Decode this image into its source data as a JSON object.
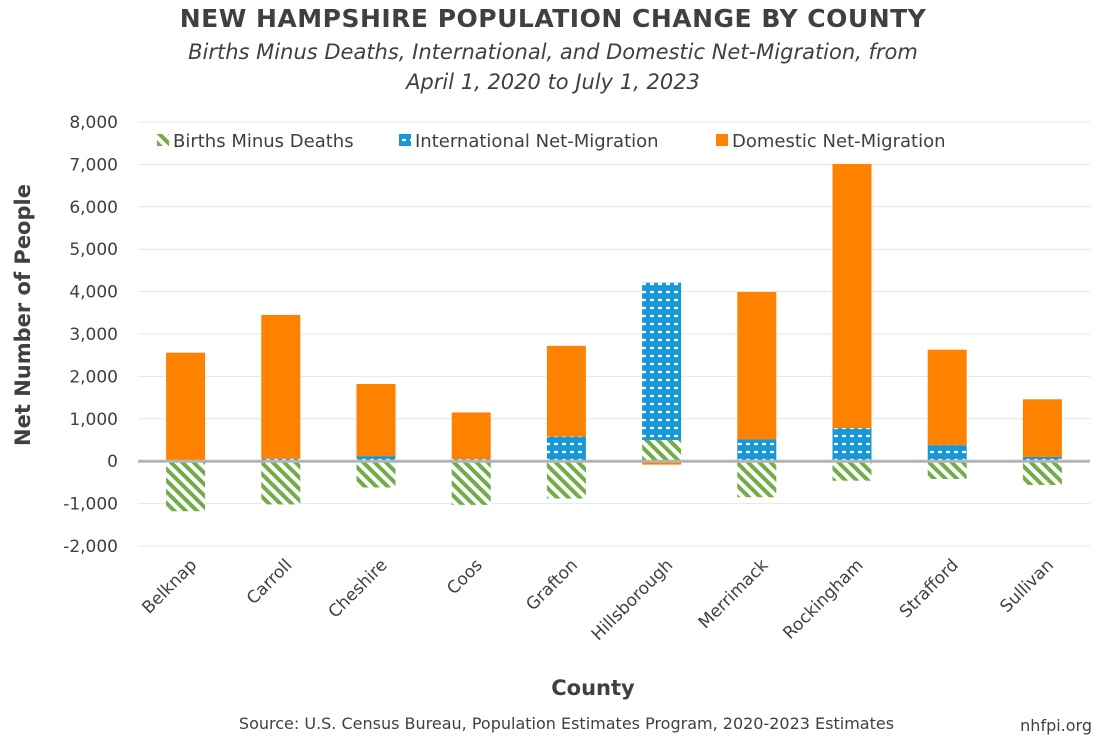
{
  "colors": {
    "births": "#70ad47",
    "international": "#1597d8",
    "domestic": "#fe8100",
    "zero_line": "#b4b4b4",
    "grid": "#e4e4e4",
    "text": "#404040"
  },
  "header": {
    "title": "NEW HAMPSHIRE POPULATION CHANGE BY COUNTY",
    "subtitle_line1": "Births Minus Deaths, International, and Domestic Net-Migration, from",
    "subtitle_line2": "April 1, 2020 to July 1, 2023"
  },
  "footer": {
    "source": "Source: U.S. Census Bureau, Population Estimates Program, 2020-2023 Estimates",
    "brand": "nhfpi.org"
  },
  "chart_data": {
    "type": "bar",
    "stacked": true,
    "categories": [
      "Belknap",
      "Carroll",
      "Cheshire",
      "Coos",
      "Grafton",
      "Hillsborough",
      "Merrimack",
      "Rockingham",
      "Strafford",
      "Sullivan"
    ],
    "series": [
      {
        "name": "Births Minus Deaths",
        "key": "births",
        "pattern": "diagonal-stripes",
        "values": [
          -1180,
          -1020,
          -620,
          -1030,
          -880,
          500,
          -850,
          -460,
          -420,
          -560
        ]
      },
      {
        "name": "International Net-Migration",
        "key": "international",
        "pattern": "dots",
        "values": [
          30,
          60,
          120,
          50,
          580,
          3710,
          520,
          780,
          380,
          100
        ]
      },
      {
        "name": "Domestic Net-Migration",
        "key": "domestic",
        "pattern": "solid",
        "values": [
          2530,
          3390,
          1700,
          1100,
          2140,
          -80,
          3470,
          6230,
          2250,
          1360
        ]
      }
    ],
    "xlabel": "County",
    "ylabel": "Net Number of People",
    "ylim": [
      -2000,
      8000
    ],
    "yticks": [
      -2000,
      -1000,
      0,
      1000,
      2000,
      3000,
      4000,
      5000,
      6000,
      7000,
      8000
    ],
    "ytick_labels": [
      "-2,000",
      "-1,000",
      "0",
      "1,000",
      "2,000",
      "3,000",
      "4,000",
      "5,000",
      "6,000",
      "7,000",
      "8,000"
    ],
    "grid": true,
    "legend_position": "top"
  }
}
